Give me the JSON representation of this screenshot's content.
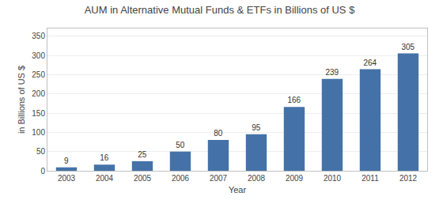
{
  "chart_data": {
    "type": "bar",
    "title": "AUM in Alternative Mutual Funds & ETFs in Billions of US $",
    "xlabel": "Year",
    "ylabel": "in Billions of US $",
    "categories": [
      "2003",
      "2004",
      "2005",
      "2006",
      "2007",
      "2008",
      "2009",
      "2010",
      "2011",
      "2012"
    ],
    "values": [
      9,
      16,
      25,
      50,
      80,
      95,
      166,
      239,
      264,
      305
    ],
    "color": "#4472a8",
    "ylim": [
      0,
      370
    ],
    "yticks": [
      0,
      50,
      100,
      150,
      200,
      250,
      300,
      350
    ],
    "grid": true,
    "data_labels": true
  }
}
